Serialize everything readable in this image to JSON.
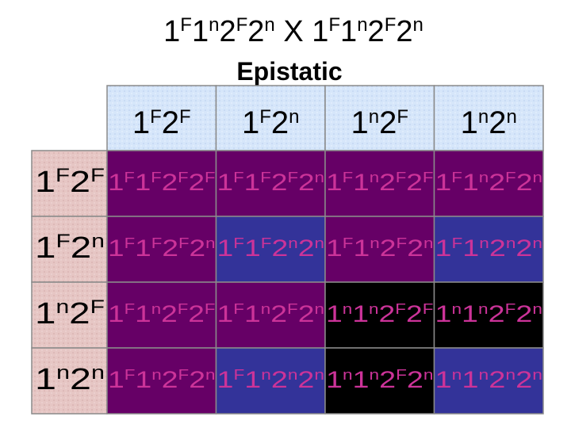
{
  "title": "1F1n2F2n X 1F1n2F2n",
  "subtitle": "Epistatic",
  "columns": [
    "1F2F",
    "1F2n",
    "1n2F",
    "1n2n"
  ],
  "cell_text_color": "#cc3399",
  "rows": [
    {
      "label": "1F2F",
      "cells": [
        {
          "genotype": "1F1F2F2F",
          "color": "#660066"
        },
        {
          "genotype": "1F1F2F2n",
          "color": "#660066"
        },
        {
          "genotype": "1F1n2F2F",
          "color": "#660066"
        },
        {
          "genotype": "1F1n2F2n",
          "color": "#660066"
        }
      ]
    },
    {
      "label": "1F2n",
      "cells": [
        {
          "genotype": "1F1F2F2n",
          "color": "#660066"
        },
        {
          "genotype": "1F1F2n2n",
          "color": "#333399"
        },
        {
          "genotype": "1F1n2F2n",
          "color": "#660066"
        },
        {
          "genotype": "1F1n2n2n",
          "color": "#333399"
        }
      ]
    },
    {
      "label": "1n2F",
      "cells": [
        {
          "genotype": "1F1n2F2F",
          "color": "#660066"
        },
        {
          "genotype": "1F1n2F2n",
          "color": "#660066"
        },
        {
          "genotype": "1n1n2F2F",
          "color": "#000000"
        },
        {
          "genotype": "1n1n2F2n",
          "color": "#000000"
        }
      ]
    },
    {
      "label": "1n2n",
      "cells": [
        {
          "genotype": "1F1n2F2n",
          "color": "#660066"
        },
        {
          "genotype": "1F1n2n2n",
          "color": "#333399"
        },
        {
          "genotype": "1n1n2F2n",
          "color": "#000000"
        },
        {
          "genotype": "1n1n2n2n",
          "color": "#333399"
        }
      ]
    }
  ]
}
